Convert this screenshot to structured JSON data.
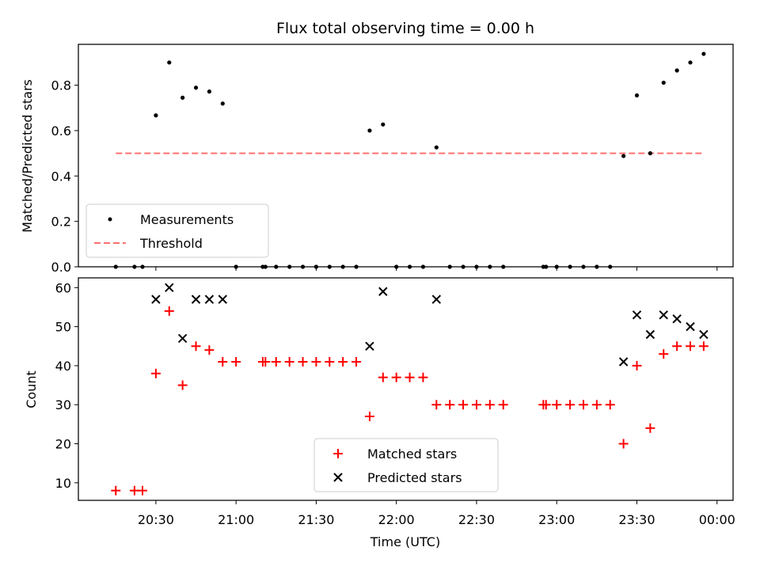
{
  "title": "Flux total observing time = 0.00 h",
  "colors": {
    "measurement": "#000000",
    "threshold": "#ff7070",
    "matched": "#ff0000",
    "predicted": "#000000"
  },
  "chart_data": [
    {
      "type": "scatter",
      "title": "Flux total observing time = 0.00 h",
      "xlabel": "",
      "ylabel": "Matched/Predicted stars",
      "xlim": [
        "20:01",
        "00:06"
      ],
      "ylim": [
        0,
        0.98
      ],
      "yticks": [
        "0.0",
        "0.2",
        "0.4",
        "0.6",
        "0.8"
      ],
      "legend_position": "lower-left",
      "legend": [
        "Measurements",
        "Threshold"
      ],
      "series": [
        {
          "name": "Measurements",
          "marker": "dot",
          "x": [
            "20:15",
            "20:22",
            "20:25",
            "20:30",
            "20:35",
            "20:40",
            "20:45",
            "20:50",
            "20:55",
            "21:00",
            "21:10",
            "21:11",
            "21:15",
            "21:20",
            "21:25",
            "21:30",
            "21:35",
            "21:40",
            "21:45",
            "21:50",
            "21:55",
            "22:00",
            "22:05",
            "22:10",
            "22:15",
            "22:20",
            "22:25",
            "22:30",
            "22:35",
            "22:40",
            "22:55",
            "22:56",
            "23:00",
            "23:05",
            "23:10",
            "23:15",
            "23:20",
            "23:25",
            "23:30",
            "23:35",
            "23:40",
            "23:45",
            "23:50",
            "23:55"
          ],
          "y": [
            0,
            0,
            0,
            0.667,
            0.9,
            0.745,
            0.789,
            0.772,
            0.719,
            0,
            0,
            0,
            0,
            0,
            0,
            0,
            0,
            0,
            0,
            0.6,
            0.627,
            0,
            0,
            0,
            0.526,
            0,
            0,
            0,
            0,
            0,
            0,
            0,
            0,
            0,
            0,
            0,
            0,
            0.488,
            0.755,
            0.5,
            0.811,
            0.865,
            0.9,
            0.938
          ]
        },
        {
          "name": "Threshold",
          "style": "dashed",
          "x": [
            "20:15",
            "23:55"
          ],
          "y": [
            0.5,
            0.5
          ]
        }
      ]
    },
    {
      "type": "scatter",
      "xlabel": "Time (UTC)",
      "ylabel": "Count",
      "xlim": [
        "20:01",
        "00:06"
      ],
      "ylim": [
        5.5,
        62.5
      ],
      "yticks": [
        "10",
        "20",
        "30",
        "40",
        "50",
        "60"
      ],
      "xticks": [
        "20:30",
        "21:00",
        "21:30",
        "22:00",
        "22:30",
        "23:00",
        "23:30",
        "00:00"
      ],
      "legend_position": "lower-center",
      "legend": [
        "Matched stars",
        "Predicted stars"
      ],
      "series": [
        {
          "name": "Matched stars",
          "marker": "plus",
          "x": [
            "20:15",
            "20:22",
            "20:25",
            "20:30",
            "20:35",
            "20:40",
            "20:45",
            "20:50",
            "20:55",
            "21:00",
            "21:10",
            "21:11",
            "21:15",
            "21:20",
            "21:25",
            "21:30",
            "21:35",
            "21:40",
            "21:45",
            "21:50",
            "21:55",
            "22:00",
            "22:05",
            "22:10",
            "22:15",
            "22:20",
            "22:25",
            "22:30",
            "22:35",
            "22:40",
            "22:55",
            "22:56",
            "23:00",
            "23:05",
            "23:10",
            "23:15",
            "23:20",
            "23:25",
            "23:30",
            "23:35",
            "23:40",
            "23:45",
            "23:50",
            "23:55"
          ],
          "y": [
            8,
            8,
            8,
            38,
            54,
            35,
            45,
            44,
            41,
            41,
            41,
            41,
            41,
            41,
            41,
            41,
            41,
            41,
            41,
            27,
            37,
            37,
            37,
            37,
            30,
            30,
            30,
            30,
            30,
            30,
            30,
            30,
            30,
            30,
            30,
            30,
            30,
            20,
            40,
            24,
            43,
            45,
            45,
            45
          ]
        },
        {
          "name": "Predicted stars",
          "marker": "x",
          "x": [
            "20:30",
            "20:35",
            "20:40",
            "20:45",
            "20:50",
            "20:55",
            "21:50",
            "21:55",
            "22:15",
            "23:25",
            "23:30",
            "23:35",
            "23:40",
            "23:45",
            "23:50",
            "23:55"
          ],
          "y": [
            57,
            60,
            47,
            57,
            57,
            57,
            45,
            59,
            57,
            41,
            53,
            48,
            53,
            52,
            50,
            48
          ]
        }
      ]
    }
  ]
}
